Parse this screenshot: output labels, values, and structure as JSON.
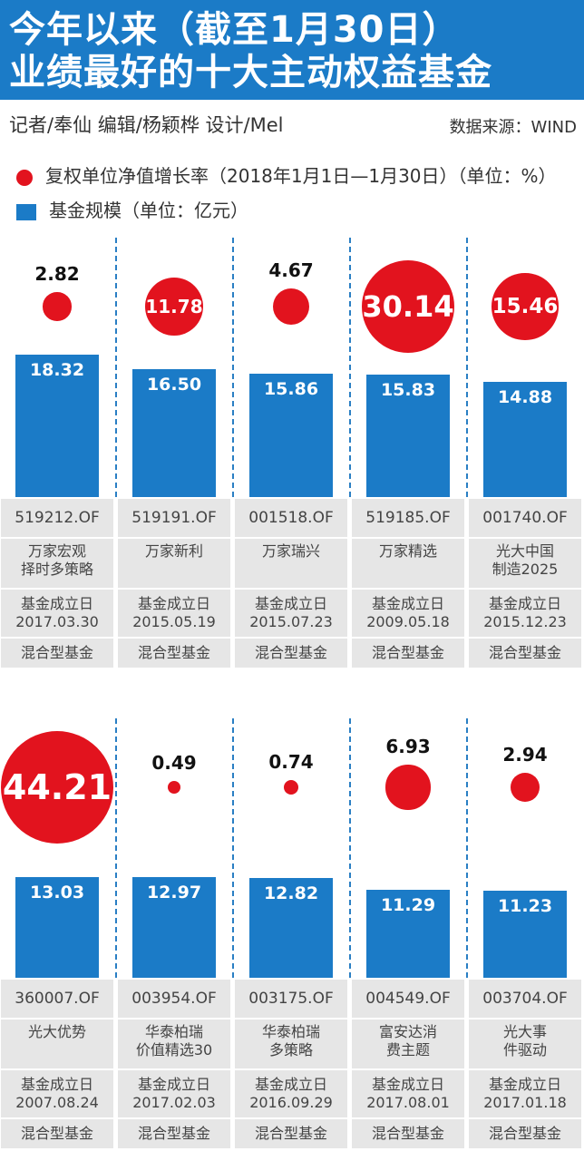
{
  "header": {
    "title_line1": "今年以来（截至1月30日）",
    "title_line2": "业绩最好的十大主动权益基金",
    "credits": "记者/奉仙   编辑/杨颖桦   设计/Mel",
    "source": "数据来源：WIND"
  },
  "legend": {
    "growth": "复权单位净值增长率（2018年1月1日—1月30日）（单位：%）",
    "scale": "基金规模（单位：亿元）"
  },
  "colors": {
    "circle": "#e2131e",
    "bar": "#1b7bc7",
    "cell": "#e6e6e6",
    "header": "#1b7bc7"
  },
  "chart_data": {
    "type": "bar",
    "series": [
      {
        "name": "复权单位净值增长率（2018年1月1日—1月30日）（单位：%）",
        "marker": "circle",
        "values": [
          2.82,
          11.78,
          4.67,
          30.14,
          15.46,
          44.21,
          0.49,
          0.74,
          6.93,
          2.94
        ]
      },
      {
        "name": "基金规模（单位：亿元）",
        "marker": "bar",
        "values": [
          18.32,
          16.5,
          15.86,
          15.83,
          14.88,
          13.03,
          12.97,
          12.82,
          11.29,
          11.23
        ]
      }
    ],
    "funds": [
      {
        "code": "519212.OF",
        "name": [
          "万家宏观",
          "择时多策略"
        ],
        "date_label": "基金成立日",
        "date": "2017.03.30",
        "type": "混合型基金",
        "growth": "2.82",
        "scale": "18.32"
      },
      {
        "code": "519191.OF",
        "name": [
          "万家新利"
        ],
        "date_label": "基金成立日",
        "date": "2015.05.19",
        "type": "混合型基金",
        "growth": "11.78",
        "scale": "16.50"
      },
      {
        "code": "001518.OF",
        "name": [
          "万家瑞兴"
        ],
        "date_label": "基金成立日",
        "date": "2015.07.23",
        "type": "混合型基金",
        "growth": "4.67",
        "scale": "15.86"
      },
      {
        "code": "519185.OF",
        "name": [
          "万家精选"
        ],
        "date_label": "基金成立日",
        "date": "2009.05.18",
        "type": "混合型基金",
        "growth": "30.14",
        "scale": "15.83"
      },
      {
        "code": "001740.OF",
        "name": [
          "光大中国",
          "制造2025"
        ],
        "date_label": "基金成立日",
        "date": "2015.12.23",
        "type": "混合型基金",
        "growth": "15.46",
        "scale": "14.88"
      },
      {
        "code": "360007.OF",
        "name": [
          "光大优势"
        ],
        "date_label": "基金成立日",
        "date": "2007.08.24",
        "type": "混合型基金",
        "growth": "44.21",
        "scale": "13.03"
      },
      {
        "code": "003954.OF",
        "name": [
          "华泰柏瑞",
          "价值精选30"
        ],
        "date_label": "基金成立日",
        "date": "2017.02.03",
        "type": "混合型基金",
        "growth": "0.49",
        "scale": "12.97"
      },
      {
        "code": "003175.OF",
        "name": [
          "华泰柏瑞",
          "多策略"
        ],
        "date_label": "基金成立日",
        "date": "2016.09.29",
        "type": "混合型基金",
        "growth": "0.74",
        "scale": "12.82"
      },
      {
        "code": "004549.OF",
        "name": [
          "富安达消",
          "费主题"
        ],
        "date_label": "基金成立日",
        "date": "2017.08.01",
        "type": "混合型基金",
        "growth": "6.93",
        "scale": "11.29"
      },
      {
        "code": "003704.OF",
        "name": [
          "光大事",
          "件驱动"
        ],
        "date_label": "基金成立日",
        "date": "2017.01.18",
        "type": "混合型基金",
        "growth": "2.94",
        "scale": "11.23"
      }
    ]
  }
}
